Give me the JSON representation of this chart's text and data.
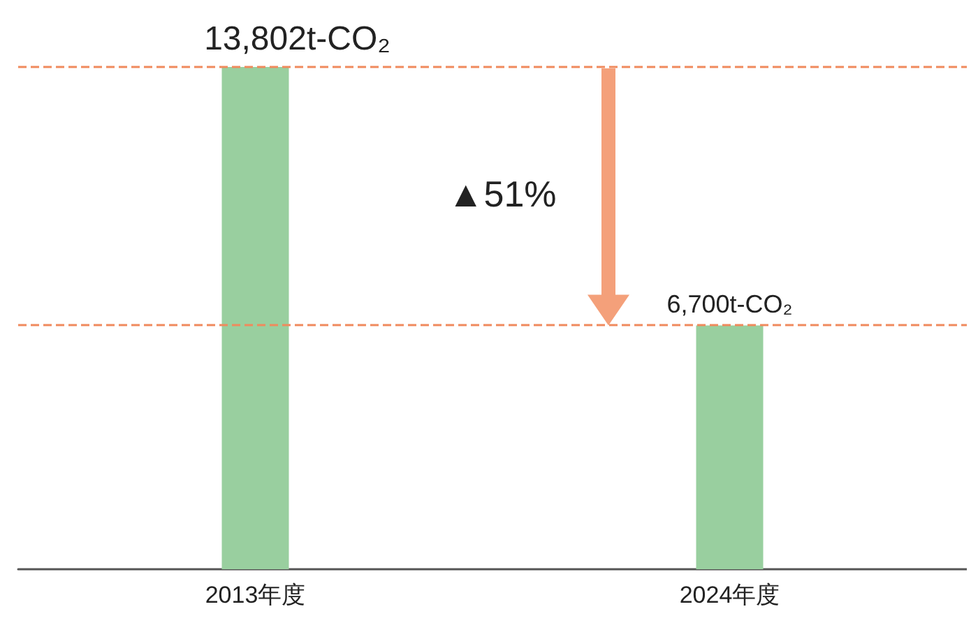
{
  "chart_data": {
    "type": "bar",
    "categories": [
      "2013年度",
      "2024年度"
    ],
    "values": [
      13802,
      6700
    ],
    "color": "#99cf9f",
    "value_labels": [
      "13,802t-CO₂",
      "6,700t-CO₂"
    ],
    "ylim": [
      0,
      13802
    ],
    "ref_lines": [
      {
        "axis": "y",
        "value": 13802,
        "color": "#f08a5d",
        "line_style": "dashed"
      },
      {
        "axis": "y",
        "value": 6700,
        "color": "#f08a5d",
        "line_style": "dashed"
      }
    ],
    "annotations": [
      "▲51%"
    ],
    "tick_labels": "x"
  }
}
